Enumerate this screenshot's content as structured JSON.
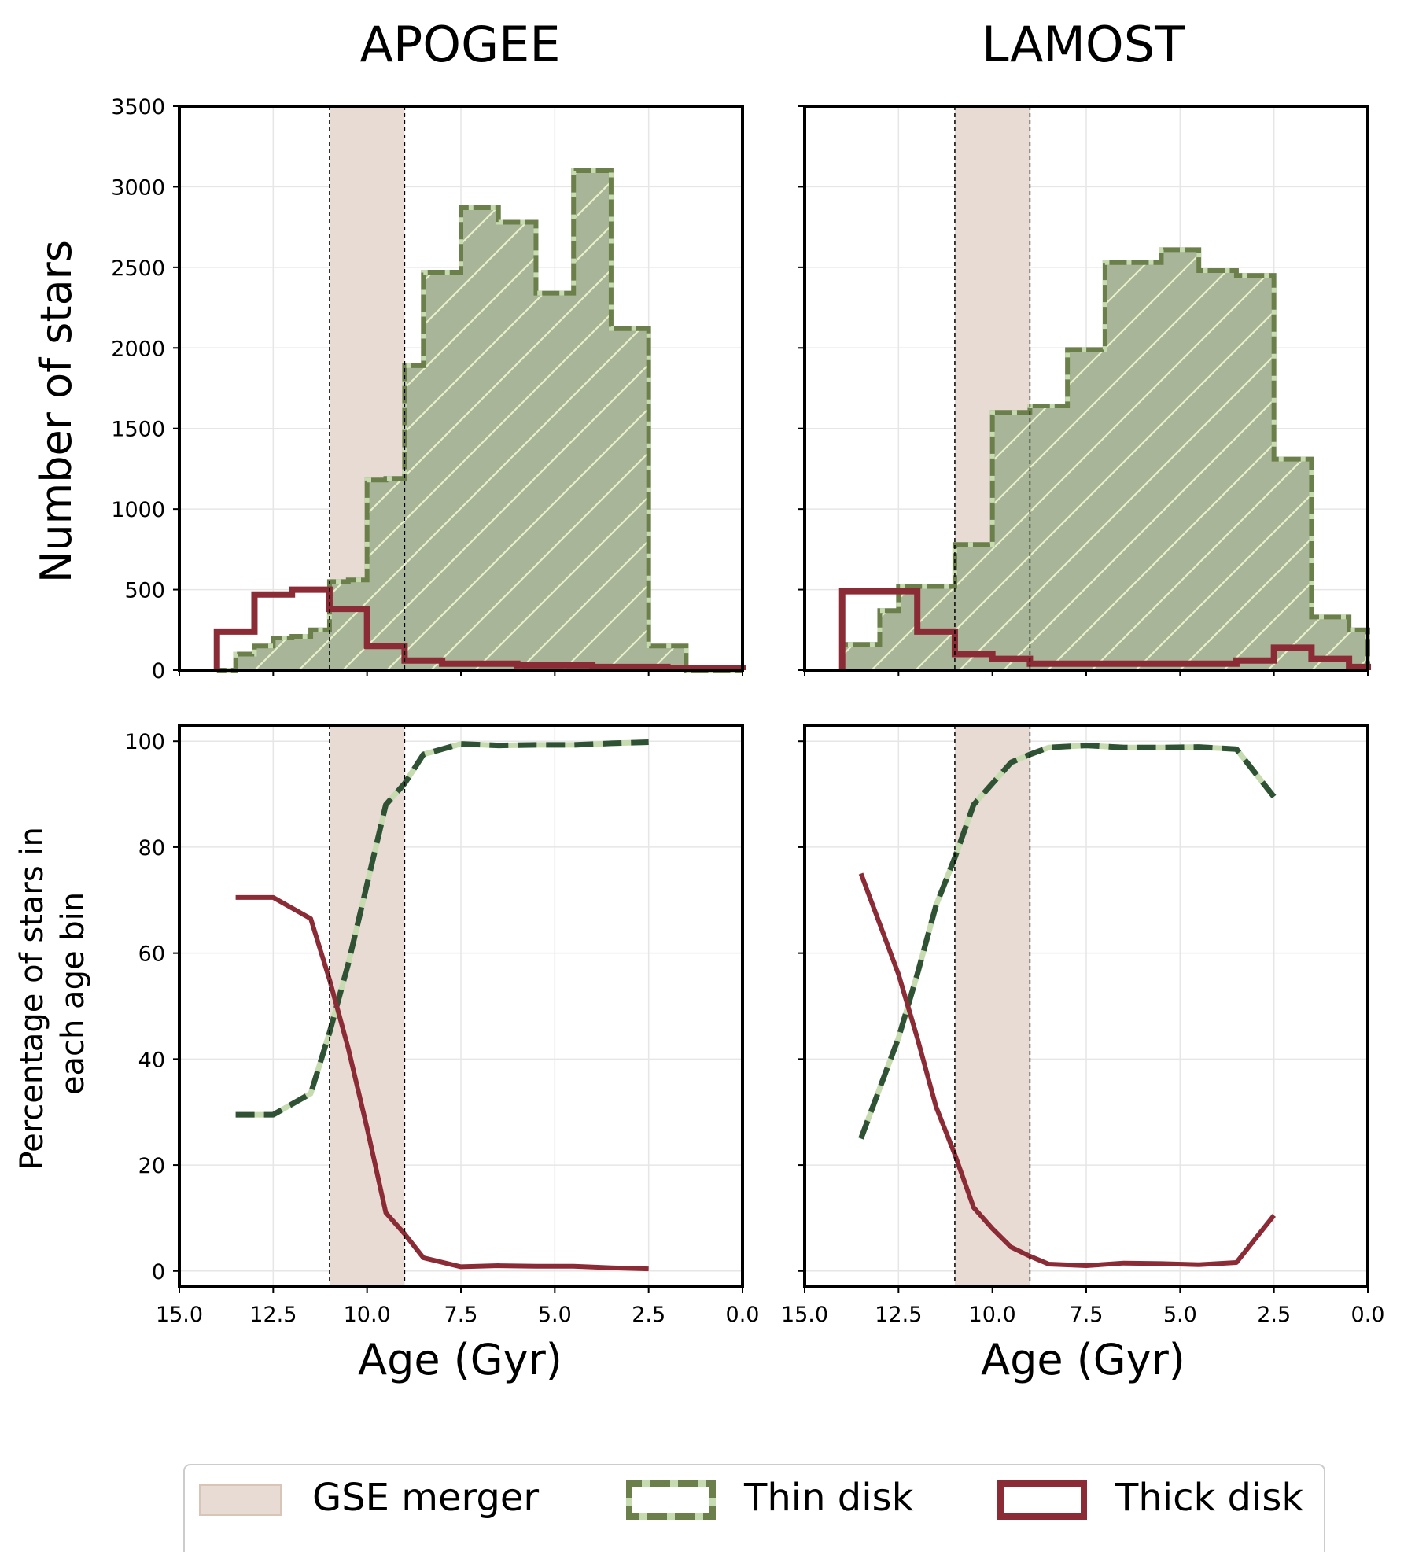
{
  "colors": {
    "thin_disk_fill": "#a9b598",
    "thin_disk_edge": "#6b7f4b",
    "thin_disk_dash": "#c7dbb1",
    "thin_disk_line": "#2f5234",
    "thick_disk": "#8b2b36",
    "gse_band": "#e8dbd3",
    "grid": "#e6e6e6"
  },
  "legend": {
    "gse": "GSE merger",
    "thin": "Thin disk",
    "thick": "Thick disk"
  },
  "chart_data": [
    {
      "panel": "top-left",
      "type": "histogram",
      "title": "APOGEE",
      "xlabel": "",
      "ylabel": "Number of stars",
      "xlim": [
        15.0,
        0.0
      ],
      "ylim": [
        0,
        3500
      ],
      "yticks": [
        0,
        500,
        1000,
        1500,
        2000,
        2500,
        3000,
        3500
      ],
      "grid": true,
      "gse_band": [
        11.0,
        9.0
      ],
      "series": [
        {
          "name": "Thin disk",
          "style": "step-filled",
          "bin_edges": [
            14.0,
            13.5,
            13.0,
            12.5,
            12.0,
            11.5,
            11.0,
            10.5,
            10.0,
            9.5,
            9.0,
            8.5,
            7.5,
            6.5,
            5.5,
            4.5,
            3.5,
            2.5,
            1.5,
            1.0,
            0.0
          ],
          "values": [
            0,
            100,
            150,
            200,
            210,
            250,
            550,
            560,
            1180,
            1190,
            1890,
            2470,
            2870,
            2780,
            2340,
            3100,
            2120,
            150,
            0,
            0
          ]
        },
        {
          "name": "Thick disk",
          "style": "step",
          "bin_edges": [
            14.0,
            13.0,
            12.0,
            11.0,
            10.0,
            9.0,
            8.0,
            6.0,
            4.0,
            2.0,
            0.0
          ],
          "values": [
            240,
            470,
            500,
            380,
            150,
            60,
            40,
            30,
            20,
            10
          ]
        }
      ]
    },
    {
      "panel": "top-right",
      "type": "histogram",
      "title": "LAMOST",
      "xlabel": "",
      "ylabel": "",
      "xlim": [
        15.0,
        0.0
      ],
      "ylim": [
        0,
        3500
      ],
      "grid": true,
      "gse_band": [
        11.0,
        9.0
      ],
      "series": [
        {
          "name": "Thin disk",
          "style": "step-filled",
          "bin_edges": [
            14.0,
            13.0,
            12.5,
            11.0,
            10.0,
            9.0,
            8.0,
            7.0,
            5.5,
            4.5,
            3.5,
            2.5,
            1.5,
            0.5,
            0.0
          ],
          "values": [
            160,
            370,
            520,
            780,
            1600,
            1640,
            1990,
            2530,
            2610,
            2480,
            2450,
            1310,
            330,
            250
          ],
          "note": "open-ended last bin"
        },
        {
          "name": "Thick disk",
          "style": "step",
          "bin_edges": [
            14.0,
            12.0,
            11.0,
            10.0,
            9.0,
            8.0,
            6.5,
            4.5,
            3.5,
            2.5,
            1.5,
            0.5,
            0.0
          ],
          "values": [
            490,
            240,
            100,
            70,
            40,
            40,
            40,
            40,
            60,
            140,
            70,
            20
          ]
        }
      ]
    },
    {
      "panel": "bottom-left",
      "type": "line",
      "title": "",
      "xlabel": "Age (Gyr)",
      "ylabel": "Percentage of stars in\neach age bin",
      "xlim": [
        15.0,
        0.0
      ],
      "ylim": [
        -3,
        103
      ],
      "xticks": [
        "15.0",
        "12.5",
        "10.0",
        "7.5",
        "5.0",
        "2.5",
        "0.0"
      ],
      "yticks": [
        0,
        20,
        40,
        60,
        80,
        100
      ],
      "grid": true,
      "gse_band": [
        11.0,
        9.0
      ],
      "series": [
        {
          "name": "Thin disk",
          "style": "dashed",
          "x": [
            13.5,
            12.5,
            11.5,
            11.0,
            10.5,
            10.0,
            9.5,
            9.0,
            8.5,
            7.5,
            6.5,
            5.5,
            4.5,
            3.5,
            2.5
          ],
          "y": [
            29.5,
            29.5,
            33.5,
            45,
            58,
            73,
            88,
            92,
            97.5,
            99.5,
            99.2,
            99.3,
            99.3,
            99.6,
            99.8
          ]
        },
        {
          "name": "Thick disk",
          "style": "solid",
          "x": [
            13.5,
            12.5,
            11.5,
            11.0,
            10.5,
            10.0,
            9.5,
            9.0,
            8.5,
            7.5,
            6.5,
            5.5,
            4.5,
            3.5,
            2.5
          ],
          "y": [
            70.5,
            70.5,
            66.5,
            55,
            42,
            27,
            11,
            7,
            2.5,
            0.8,
            1.0,
            0.9,
            0.9,
            0.6,
            0.4
          ]
        }
      ]
    },
    {
      "panel": "bottom-right",
      "type": "line",
      "title": "",
      "xlabel": "Age (Gyr)",
      "ylabel": "",
      "xlim": [
        15.0,
        0.0
      ],
      "ylim": [
        -3,
        103
      ],
      "xticks": [
        "15.0",
        "12.5",
        "10.0",
        "7.5",
        "5.0",
        "2.5",
        "0.0"
      ],
      "grid": true,
      "gse_band": [
        11.0,
        9.0
      ],
      "series": [
        {
          "name": "Thin disk",
          "style": "dashed",
          "x": [
            13.5,
            12.5,
            12.0,
            11.5,
            11.0,
            10.5,
            10.0,
            9.5,
            9.0,
            8.5,
            7.5,
            6.5,
            5.5,
            4.5,
            3.5,
            2.5
          ],
          "y": [
            25,
            44,
            56,
            69,
            78,
            88,
            92,
            96,
            97.5,
            98.8,
            99.2,
            98.8,
            98.8,
            98.9,
            98.5,
            89.5
          ]
        },
        {
          "name": "Thick disk",
          "style": "solid",
          "x": [
            13.5,
            12.5,
            12.0,
            11.5,
            11.0,
            10.5,
            10.0,
            9.5,
            9.0,
            8.5,
            7.5,
            6.5,
            5.5,
            4.5,
            3.5,
            2.5
          ],
          "y": [
            75,
            56,
            44,
            31,
            22,
            12,
            8,
            4.5,
            2.8,
            1.3,
            1.0,
            1.5,
            1.4,
            1.2,
            1.6,
            10.5
          ]
        }
      ]
    }
  ]
}
